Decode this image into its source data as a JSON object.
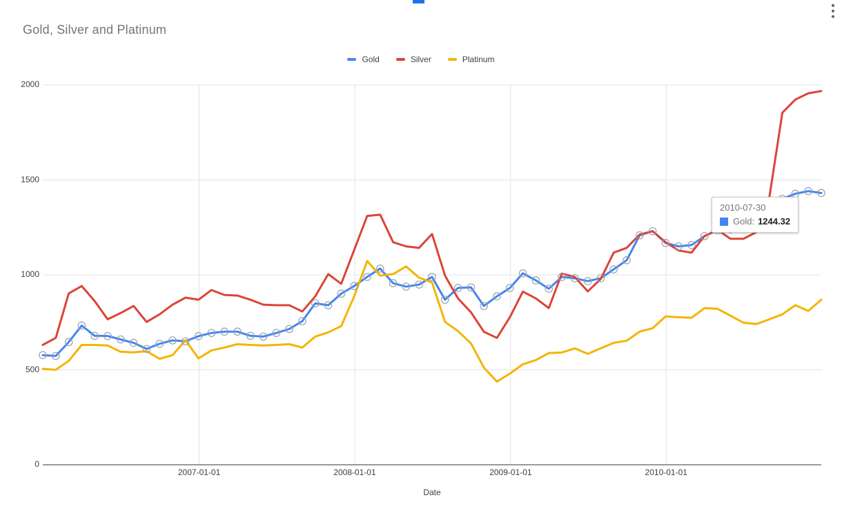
{
  "header": {
    "title": "Gold, Silver and Platinum",
    "menu_icon": "kebab-vertical",
    "accent_bar_color": "#1a73e8"
  },
  "legend": {
    "items": [
      {
        "label": "Gold",
        "color": "#4285f4"
      },
      {
        "label": "Silver",
        "color": "#db4437"
      },
      {
        "label": "Platinum",
        "color": "#f4b400"
      }
    ]
  },
  "axes": {
    "y_ticks": [
      "0",
      "500",
      "1000",
      "1500",
      "2000"
    ],
    "x_ticks": [
      "2007-01-01",
      "2008-01-01",
      "2009-01-01",
      "2010-01-01"
    ],
    "x_axis_title": "Date"
  },
  "tooltip": {
    "date": "2010-07-30",
    "series_label": "Gold:",
    "value": "1244.32",
    "swatch_color": "#4285f4"
  },
  "chart_data": {
    "type": "line",
    "title": "Gold, Silver and Platinum",
    "xlabel": "Date",
    "ylabel": "",
    "ylim": [
      0,
      2000
    ],
    "grid": true,
    "legend_position": "top",
    "x": [
      "2005-12-30",
      "2006-01-31",
      "2006-02-28",
      "2006-03-31",
      "2006-04-28",
      "2006-05-31",
      "2006-06-30",
      "2006-07-31",
      "2006-08-31",
      "2006-09-29",
      "2006-10-31",
      "2006-11-30",
      "2006-12-29",
      "2007-01-31",
      "2007-02-28",
      "2007-03-30",
      "2007-04-30",
      "2007-05-31",
      "2007-06-29",
      "2007-07-31",
      "2007-08-31",
      "2007-09-28",
      "2007-10-31",
      "2007-11-30",
      "2007-12-31",
      "2008-01-31",
      "2008-02-29",
      "2008-03-31",
      "2008-04-30",
      "2008-05-30",
      "2008-06-30",
      "2008-07-31",
      "2008-08-29",
      "2008-09-30",
      "2008-10-31",
      "2008-11-28",
      "2008-12-31",
      "2009-01-30",
      "2009-02-27",
      "2009-03-31",
      "2009-04-30",
      "2009-05-29",
      "2009-06-30",
      "2009-07-31",
      "2009-08-31",
      "2009-09-30",
      "2009-10-30",
      "2009-11-30",
      "2009-12-31",
      "2010-01-29",
      "2010-02-26",
      "2010-03-31",
      "2010-04-30",
      "2010-05-28",
      "2010-06-30",
      "2010-07-30",
      "2010-08-31",
      "2010-09-30",
      "2010-10-29",
      "2010-11-30",
      "2010-12-31"
    ],
    "series": [
      {
        "name": "Gold",
        "color": "#4285f4",
        "point_markers": true,
        "values": [
          577,
          573,
          646,
          733,
          679,
          678,
          660,
          642,
          610,
          637,
          655,
          650,
          677,
          694,
          701,
          701,
          679,
          675,
          694,
          715,
          756,
          850,
          840,
          901,
          941,
          989,
          1033,
          956,
          938,
          949,
          989,
          869,
          931,
          934,
          836,
          887,
          931,
          1008,
          971,
          927,
          989,
          982,
          967,
          982,
          1029,
          1077,
          1208,
          1230,
          1168,
          1150,
          1157,
          1204,
          1235,
          1240,
          1242,
          1244.32,
          1300,
          1400,
          1427,
          1441,
          1431
        ]
      },
      {
        "name": "Silver",
        "color": "#db4437",
        "point_markers": false,
        "values": [
          631,
          668,
          902,
          941,
          862,
          766,
          799,
          836,
          752,
          792,
          843,
          880,
          869,
          920,
          894,
          891,
          869,
          843,
          840,
          840,
          807,
          887,
          1004,
          953,
          1131,
          1310,
          1317,
          1172,
          1150,
          1142,
          1215,
          996,
          876,
          803,
          700,
          668,
          777,
          912,
          876,
          825,
          1007,
          989,
          913,
          978,
          1117,
          1142,
          1212,
          1230,
          1172,
          1128,
          1117,
          1204,
          1237,
          1190,
          1190,
          1225,
          1409,
          1854,
          1923,
          1956,
          1968
        ]
      },
      {
        "name": "Platinum",
        "color": "#f4b400",
        "point_markers": false,
        "values": [
          505,
          500,
          547,
          631,
          631,
          628,
          595,
          592,
          598,
          558,
          577,
          656,
          560,
          602,
          617,
          635,
          631,
          628,
          631,
          635,
          617,
          675,
          697,
          730,
          887,
          1073,
          996,
          1004,
          1044,
          985,
          960,
          752,
          704,
          639,
          511,
          438,
          480,
          529,
          551,
          588,
          591,
          613,
          584,
          613,
          642,
          653,
          701,
          719,
          781,
          777,
          774,
          825,
          821,
          785,
          748,
          741,
          766,
          792,
          840,
          810,
          869
        ]
      }
    ],
    "hover_point": {
      "series": "Gold",
      "x": "2010-07-30",
      "value": 1244.32
    }
  }
}
